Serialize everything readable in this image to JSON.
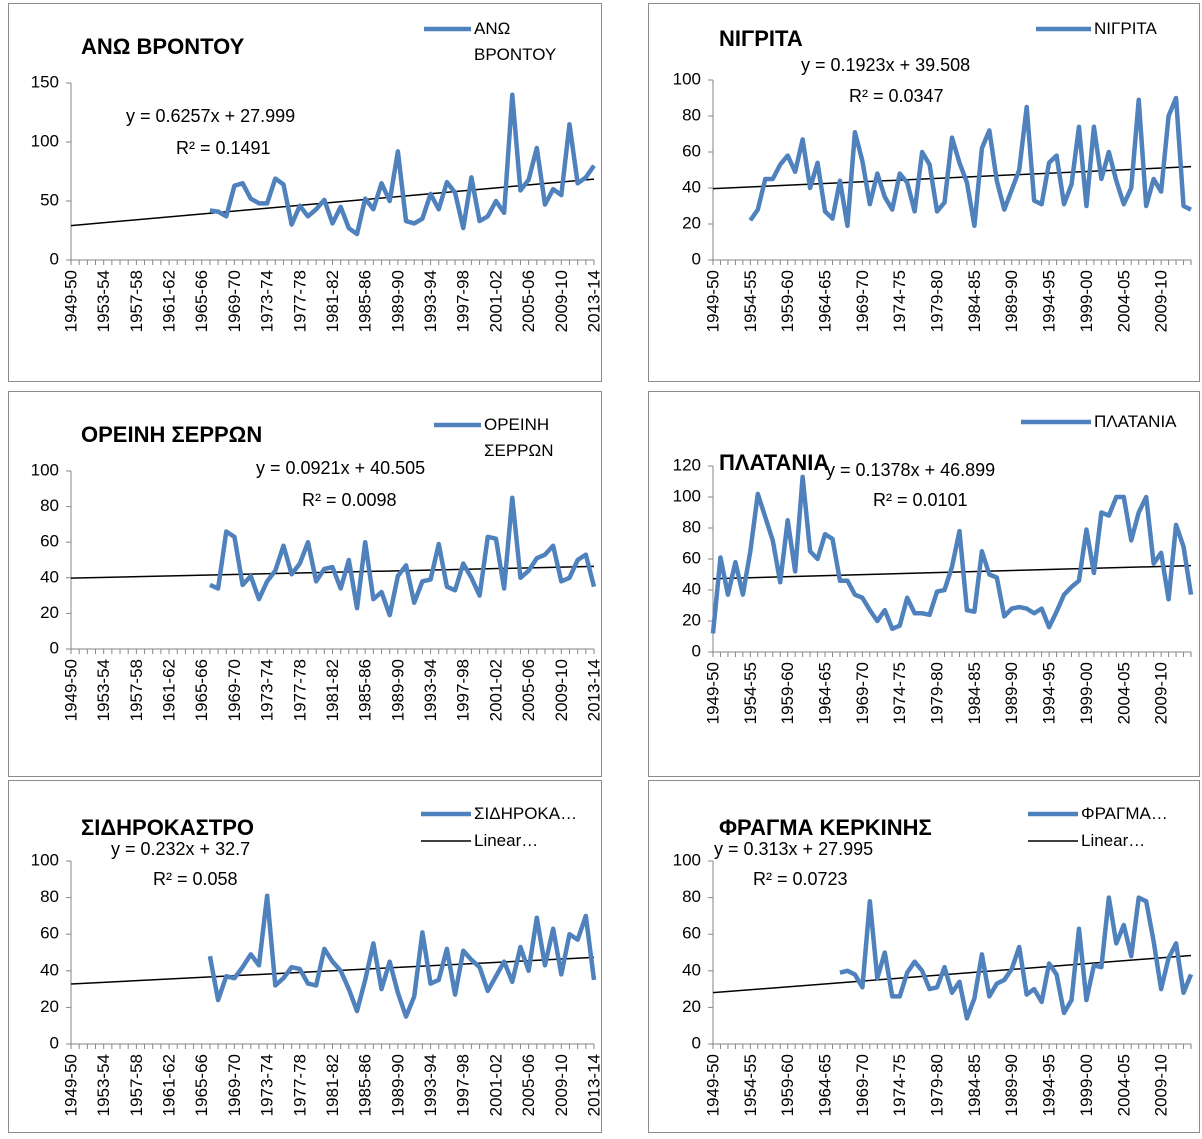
{
  "chart_data": [
    {
      "type": "line",
      "title": "ΑΝΩ ΒΡΟΝΤΟΥ",
      "categories": [
        "1949-50",
        null,
        null,
        null,
        "1953-54",
        null,
        null,
        null,
        "1957-58",
        null,
        null,
        null,
        "1961-62",
        null,
        null,
        null,
        "1965-66",
        null,
        null,
        null,
        "1969-70",
        null,
        null,
        null,
        "1973-74",
        null,
        null,
        null,
        "1977-78",
        null,
        null,
        null,
        "1981-82",
        null,
        null,
        null,
        "1985-86",
        null,
        null,
        null,
        "1989-90",
        null,
        null,
        null,
        "1993-94",
        null,
        null,
        null,
        "1997-98",
        null,
        null,
        null,
        "2001-02",
        null,
        null,
        null,
        "2005-06",
        null,
        null,
        null,
        "2009-10",
        null,
        null,
        null,
        "2013-14"
      ],
      "series": [
        {
          "name": "ΑΝΩ ΒΡΟΝΤΟΥ",
          "color": "#4f81bd",
          "values": [
            null,
            null,
            null,
            null,
            null,
            null,
            null,
            null,
            null,
            null,
            null,
            null,
            null,
            null,
            null,
            null,
            null,
            42,
            41,
            37,
            63,
            65,
            52,
            48,
            48,
            69,
            64,
            30,
            46,
            37,
            43,
            51,
            31,
            45,
            27,
            22,
            52,
            43,
            65,
            50,
            92,
            33,
            31,
            35,
            56,
            43,
            66,
            57,
            27,
            70,
            33,
            37,
            50,
            40,
            140,
            59,
            68,
            95,
            47,
            60,
            55,
            115,
            65,
            70,
            80
          ]
        }
      ],
      "ylim": [
        0,
        150
      ],
      "yticks": [
        0,
        50,
        100,
        150
      ],
      "trendline": true,
      "equation": "y = 0.6257x + 27.999",
      "r_squared": "R² = 0.1491"
    },
    {
      "type": "line",
      "title": "ΝΙΓΡΙΤΑ",
      "categories": [
        "1949-50",
        null,
        null,
        null,
        null,
        "1954-55",
        null,
        null,
        null,
        null,
        "1959-60",
        null,
        null,
        null,
        null,
        "1964-65",
        null,
        null,
        null,
        null,
        "1969-70",
        null,
        null,
        null,
        null,
        "1974-75",
        null,
        null,
        null,
        null,
        "1979-80",
        null,
        null,
        null,
        null,
        "1984-85",
        null,
        null,
        null,
        null,
        "1989-90",
        null,
        null,
        null,
        null,
        "1994-95",
        null,
        null,
        null,
        null,
        "1999-00",
        null,
        null,
        null,
        null,
        "2004-05",
        null,
        null,
        null,
        null,
        "2009-10",
        null,
        null,
        null,
        null
      ],
      "series": [
        {
          "name": "ΝΙΓΡΙΤΑ",
          "color": "#4f81bd",
          "values": [
            null,
            null,
            null,
            null,
            null,
            22,
            28,
            45,
            45,
            53,
            58,
            49,
            67,
            40,
            54,
            27,
            23,
            44,
            19,
            71,
            55,
            31,
            48,
            35,
            28,
            48,
            43,
            27,
            60,
            53,
            27,
            32,
            68,
            54,
            43,
            19,
            62,
            72,
            44,
            28,
            39,
            50,
            85,
            33,
            31,
            54,
            58,
            31,
            42,
            74,
            30,
            74,
            45,
            60,
            44,
            31,
            40,
            89,
            30,
            45,
            38,
            80,
            90,
            30,
            28
          ]
        }
      ],
      "ylim": [
        0,
        100
      ],
      "yticks": [
        0,
        20,
        40,
        60,
        80,
        100
      ],
      "trendline": true,
      "equation": "y = 0.1923x + 39.508",
      "r_squared": "R² = 0.0347"
    },
    {
      "type": "line",
      "title": "ΟΡΕΙΝΗ ΣΕΡΡΩΝ",
      "categories": [
        "1949-50",
        null,
        null,
        null,
        "1953-54",
        null,
        null,
        null,
        "1957-58",
        null,
        null,
        null,
        "1961-62",
        null,
        null,
        null,
        "1965-66",
        null,
        null,
        null,
        "1969-70",
        null,
        null,
        null,
        "1973-74",
        null,
        null,
        null,
        "1977-78",
        null,
        null,
        null,
        "1981-82",
        null,
        null,
        null,
        "1985-86",
        null,
        null,
        null,
        "1989-90",
        null,
        null,
        null,
        "1993-94",
        null,
        null,
        null,
        "1997-98",
        null,
        null,
        null,
        "2001-02",
        null,
        null,
        null,
        "2005-06",
        null,
        null,
        null,
        "2009-10",
        null,
        null,
        null,
        "2013-14"
      ],
      "series": [
        {
          "name": "ΟΡΕΙΝΗ ΣΕΡΡΩΝ",
          "color": "#4f81bd",
          "values": [
            null,
            null,
            null,
            null,
            null,
            null,
            null,
            null,
            null,
            null,
            null,
            null,
            null,
            null,
            null,
            null,
            null,
            36,
            34,
            66,
            63,
            36,
            41,
            28,
            38,
            44,
            58,
            42,
            48,
            60,
            38,
            45,
            46,
            34,
            50,
            23,
            60,
            28,
            32,
            19,
            41,
            47,
            26,
            38,
            39,
            59,
            35,
            33,
            48,
            40,
            30,
            63,
            62,
            34,
            85,
            40,
            44,
            51,
            53,
            58,
            38,
            40,
            50,
            53,
            35
          ]
        }
      ],
      "ylim": [
        0,
        100
      ],
      "yticks": [
        0,
        20,
        40,
        60,
        80,
        100
      ],
      "trendline": true,
      "equation": "y = 0.0921x + 40.505",
      "r_squared": "R² = 0.0098"
    },
    {
      "type": "line",
      "title": "ΠΛΑΤΑΝΙΑ",
      "categories": [
        "1949-50",
        null,
        null,
        null,
        null,
        "1954-55",
        null,
        null,
        null,
        null,
        "1959-60",
        null,
        null,
        null,
        null,
        "1964-65",
        null,
        null,
        null,
        null,
        "1969-70",
        null,
        null,
        null,
        null,
        "1974-75",
        null,
        null,
        null,
        null,
        "1979-80",
        null,
        null,
        null,
        null,
        "1984-85",
        null,
        null,
        null,
        null,
        "1989-90",
        null,
        null,
        null,
        null,
        "1994-95",
        null,
        null,
        null,
        null,
        "1999-00",
        null,
        null,
        null,
        null,
        "2004-05",
        null,
        null,
        null,
        null,
        "2009-10",
        null,
        null,
        null,
        null
      ],
      "series": [
        {
          "name": "ΠΛΑΤΑΝΙΑ",
          "color": "#4f81bd",
          "values": [
            12,
            61,
            37,
            58,
            37,
            65,
            102,
            87,
            72,
            45,
            85,
            52,
            113,
            65,
            60,
            76,
            73,
            46,
            46,
            37,
            35,
            27,
            20,
            27,
            15,
            17,
            35,
            25,
            25,
            24,
            39,
            40,
            55,
            78,
            27,
            26,
            65,
            50,
            48,
            23,
            28,
            29,
            28,
            25,
            28,
            16,
            26,
            37,
            42,
            46,
            79,
            51,
            90,
            88,
            100,
            100,
            72,
            90,
            100,
            57,
            64,
            34,
            82,
            68,
            37
          ]
        }
      ],
      "ylim": [
        0,
        120
      ],
      "yticks": [
        0,
        20,
        40,
        60,
        80,
        100,
        120
      ],
      "trendline": true,
      "equation": "y = 0.1378x + 46.899",
      "r_squared": "R² = 0.0101"
    },
    {
      "type": "line",
      "title": "ΣΙΔΗΡΟΚΑΣΤΡΟ",
      "categories": [
        "1949-50",
        null,
        null,
        null,
        "1953-54",
        null,
        null,
        null,
        "1957-58",
        null,
        null,
        null,
        "1961-62",
        null,
        null,
        null,
        "1965-66",
        null,
        null,
        null,
        "1969-70",
        null,
        null,
        null,
        "1973-74",
        null,
        null,
        null,
        "1977-78",
        null,
        null,
        null,
        "1981-82",
        null,
        null,
        null,
        "1985-86",
        null,
        null,
        null,
        "1989-90",
        null,
        null,
        null,
        "1993-94",
        null,
        null,
        null,
        "1997-98",
        null,
        null,
        null,
        "2001-02",
        null,
        null,
        null,
        "2005-06",
        null,
        null,
        null,
        "2009-10",
        null,
        null,
        null,
        "2013-14"
      ],
      "series": [
        {
          "name": "ΣΙΔΗΡΟΚΑ…",
          "color": "#4f81bd",
          "values": [
            null,
            null,
            null,
            null,
            null,
            null,
            null,
            null,
            null,
            null,
            null,
            null,
            null,
            null,
            null,
            null,
            null,
            48,
            24,
            37,
            36,
            42,
            49,
            43,
            81,
            32,
            36,
            42,
            41,
            33,
            32,
            52,
            45,
            40,
            30,
            18,
            35,
            55,
            30,
            45,
            28,
            15,
            26,
            61,
            33,
            35,
            52,
            27,
            51,
            46,
            42,
            29,
            37,
            45,
            34,
            53,
            40,
            69,
            43,
            63,
            38,
            60,
            57,
            70,
            35
          ]
        }
      ],
      "ylim": [
        0,
        100
      ],
      "yticks": [
        0,
        20,
        40,
        60,
        80,
        100
      ],
      "trendline": true,
      "trend_legend": "Linear…",
      "equation": "y = 0.232x + 32.7",
      "r_squared": "R² = 0.058"
    },
    {
      "type": "line",
      "title": "ΦΡΑΓΜΑ ΚΕΡΚΙΝΗΣ",
      "categories": [
        "1949-50",
        null,
        null,
        null,
        null,
        "1954-55",
        null,
        null,
        null,
        null,
        "1959-60",
        null,
        null,
        null,
        null,
        "1964-65",
        null,
        null,
        null,
        null,
        "1969-70",
        null,
        null,
        null,
        null,
        "1974-75",
        null,
        null,
        null,
        null,
        "1979-80",
        null,
        null,
        null,
        null,
        "1984-85",
        null,
        null,
        null,
        null,
        "1989-90",
        null,
        null,
        null,
        null,
        "1994-95",
        null,
        null,
        null,
        null,
        "1999-00",
        null,
        null,
        null,
        null,
        "2004-05",
        null,
        null,
        null,
        null,
        "2009-10",
        null,
        null,
        null,
        null
      ],
      "series": [
        {
          "name": "ΦΡΑΓΜΑ…",
          "color": "#4f81bd",
          "values": [
            null,
            null,
            null,
            null,
            null,
            null,
            null,
            null,
            null,
            null,
            null,
            null,
            null,
            null,
            null,
            null,
            null,
            39,
            40,
            38,
            31,
            78,
            36,
            50,
            26,
            26,
            39,
            45,
            40,
            30,
            31,
            42,
            28,
            34,
            14,
            25,
            49,
            26,
            33,
            35,
            41,
            53,
            27,
            30,
            23,
            44,
            38,
            17,
            24,
            63,
            24,
            43,
            42,
            80,
            55,
            65,
            48,
            80,
            78,
            56,
            30,
            47,
            55,
            28,
            38
          ]
        }
      ],
      "ylim": [
        0,
        100
      ],
      "yticks": [
        0,
        20,
        40,
        60,
        80,
        100
      ],
      "trendline": true,
      "trend_legend": "Linear…",
      "equation": "y = 0.313x + 27.995",
      "r_squared": "R² = 0.0723"
    }
  ]
}
